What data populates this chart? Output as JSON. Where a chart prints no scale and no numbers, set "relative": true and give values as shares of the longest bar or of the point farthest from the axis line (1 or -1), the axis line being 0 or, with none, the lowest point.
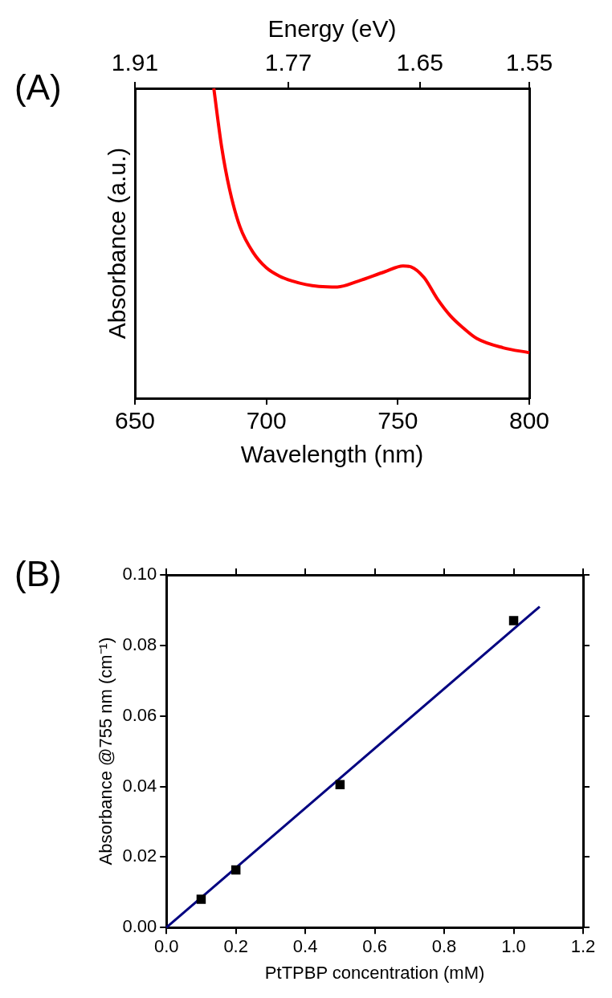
{
  "chart_data": [
    {
      "type": "line",
      "annotations": [
        "(A)"
      ],
      "xlabel": "Wavelength (nm)",
      "ylabel": "Absorbance (a.u.)",
      "x2label": "Energy (eV)",
      "relative": true,
      "xlim": [
        650,
        800
      ],
      "xticks": [
        650,
        700,
        750,
        800
      ],
      "x2lim": [
        1.91,
        1.55
      ],
      "x2ticks": [
        1.91,
        1.77,
        1.65,
        1.55
      ],
      "x": [
        680,
        683,
        686,
        690,
        695,
        700,
        705,
        710,
        715,
        720,
        727,
        735,
        745,
        752,
        755,
        760,
        765,
        770,
        775,
        780,
        790,
        800
      ],
      "series": [
        {
          "color": "#ff0000",
          "values": [
            1.0,
            0.81,
            0.674,
            0.552,
            0.47,
            0.421,
            0.394,
            0.378,
            0.367,
            0.361,
            0.359,
            0.378,
            0.408,
            0.427,
            0.424,
            0.389,
            0.321,
            0.266,
            0.226,
            0.193,
            0.163,
            0.147
          ]
        }
      ],
      "marker": "none"
    },
    {
      "type": "scatter",
      "annotations": [
        "(B)"
      ],
      "xlabel": "PtTPBP concentration (mM)",
      "ylabel": "Absorbance @755 nm (cm⁻¹)",
      "xlim": [
        0,
        1.2
      ],
      "xticks": [
        {
          "value": 0,
          "label": "0.0"
        },
        {
          "value": 0.2,
          "label": "0.2"
        },
        {
          "value": 0.4,
          "label": "0.4"
        },
        {
          "value": 0.6,
          "label": "0.6"
        },
        {
          "value": 0.8,
          "label": "0.8"
        },
        {
          "value": 1,
          "label": "1.0"
        },
        {
          "value": 1.2,
          "label": "1.2"
        }
      ],
      "ylim": [
        0,
        0.1
      ],
      "yticks": [
        {
          "value": 0,
          "label": "0.00"
        },
        {
          "value": 0.02,
          "label": "0.02"
        },
        {
          "value": 0.04,
          "label": "0.04"
        },
        {
          "value": 0.06,
          "label": "0.06"
        },
        {
          "value": 0.08,
          "label": "0.08"
        },
        {
          "value": 0.1,
          "label": "0.10"
        }
      ],
      "marker": "square",
      "series": [
        {
          "color": "#000000",
          "x": [
            0.1,
            0.2,
            0.5,
            1.0
          ],
          "values": [
            0.008,
            0.0163,
            0.0405,
            0.087
          ]
        },
        {
          "type": "line",
          "marker": "none",
          "color": "#000080",
          "x": [
            0,
            1.075
          ],
          "values": [
            0,
            0.091
          ]
        }
      ]
    }
  ]
}
